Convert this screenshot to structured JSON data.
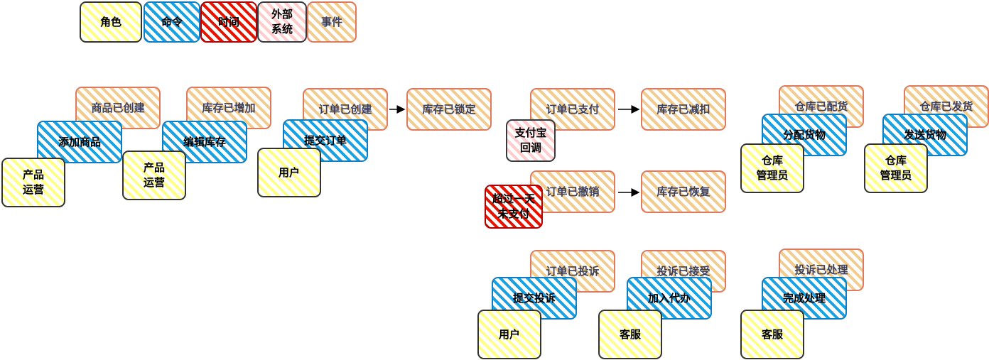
{
  "legend": [
    {
      "kind": "role",
      "label": "角色"
    },
    {
      "kind": "command",
      "label": "命令"
    },
    {
      "kind": "time",
      "label": "时间"
    },
    {
      "kind": "ext",
      "label": "外部\n系统"
    },
    {
      "kind": "event",
      "label": "事件"
    }
  ],
  "events": [
    "商品已创建",
    "库存已增加",
    "订单已创建",
    "库存已锁定",
    "订单已支付",
    "库存已减扣",
    "仓库已配货",
    "仓库已发货",
    "订单已撤销",
    "库存已恢复",
    "订单已投诉",
    "投诉已接受",
    "投诉已处理"
  ],
  "commands": [
    "添加商品",
    "编辑库存",
    "提交订单",
    "分配货物",
    "发送货物",
    "提交投诉",
    "加入代办",
    "完成处理"
  ],
  "roles": [
    "产品\n运营",
    "产品\n运营",
    "用户",
    "仓库\n管理员",
    "仓库\n管理员",
    "用户",
    "客服",
    "客服"
  ],
  "external_systems": [
    "支付宝\n回调"
  ],
  "timers": [
    "超过一天\n未支付"
  ],
  "flows": [
    {
      "from": "订单已创建",
      "to": "库存已锁定"
    },
    {
      "from": "订单已支付",
      "to": "库存已减扣"
    },
    {
      "from": "订单已撤销",
      "to": "库存已恢复"
    }
  ],
  "colors": {
    "role": "#ffff88",
    "command": "#1ba1e2",
    "time": "#e51400",
    "external": "#ffcccc",
    "event": "#f2cc8f",
    "event_border": "#e07a5f"
  }
}
